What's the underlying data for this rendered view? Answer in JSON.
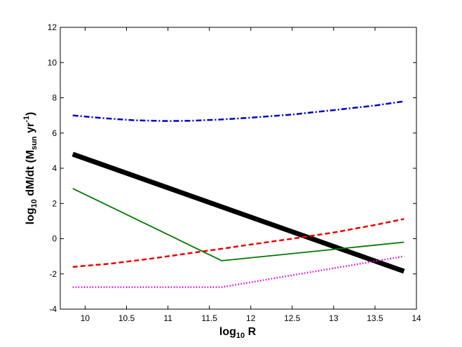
{
  "chart_data": {
    "type": "line",
    "title": "",
    "xlabel": {
      "base": "log",
      "sub": "10",
      "rest": " R"
    },
    "ylabel": {
      "part1": "log",
      "sub1": "10",
      "part2": " dM/dt (M",
      "sub2": "sun",
      "part3": " yr",
      "sup": "-1",
      "part4": ")"
    },
    "xlim": [
      9.7,
      14
    ],
    "ylim": [
      -4,
      12
    ],
    "xticks": [
      "10",
      "10.5",
      "11",
      "11.5",
      "12",
      "12.5",
      "13",
      "13.5",
      "14"
    ],
    "yticks": [
      "-4",
      "-2",
      "0",
      "2",
      "4",
      "6",
      "8",
      "10",
      "12"
    ],
    "grid": false,
    "series": [
      {
        "color": "#0000cc",
        "style": "dashdot",
        "width": 2.5,
        "x": [
          9.85,
          10.2,
          10.6,
          11.0,
          11.3,
          11.65,
          12.0,
          12.5,
          13.0,
          13.5,
          13.85
        ],
        "y": [
          7.0,
          6.85,
          6.72,
          6.68,
          6.7,
          6.77,
          6.87,
          7.05,
          7.3,
          7.56,
          7.8
        ]
      },
      {
        "color": "#000000",
        "style": "solid",
        "width": 7,
        "x": [
          9.85,
          13.85
        ],
        "y": [
          4.8,
          -1.85
        ]
      },
      {
        "color": "#007700",
        "style": "solid",
        "width": 1.8,
        "x": [
          9.85,
          11.65,
          13.85
        ],
        "y": [
          2.85,
          -1.25,
          -0.2
        ]
      },
      {
        "color": "#ee0000",
        "style": "dashed",
        "width": 2.5,
        "x": [
          9.85,
          10.3,
          10.8,
          11.3,
          11.65,
          12.0,
          12.5,
          13.0,
          13.5,
          13.85
        ],
        "y": [
          -1.6,
          -1.42,
          -1.13,
          -0.8,
          -0.57,
          -0.33,
          0.0,
          0.35,
          0.78,
          1.12
        ]
      },
      {
        "color": "#ee00ee",
        "style": "dotted",
        "width": 2.5,
        "x": [
          9.85,
          11.65,
          13.85
        ],
        "y": [
          -2.75,
          -2.75,
          -1.0
        ]
      }
    ]
  }
}
